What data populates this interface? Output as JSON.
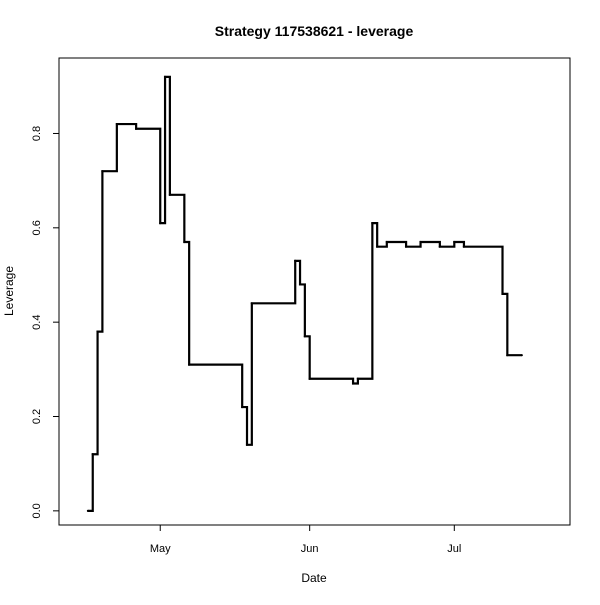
{
  "chart_data": {
    "type": "line",
    "step": true,
    "title": "Strategy 117538621 - leverage",
    "xlabel": "Date",
    "ylabel": "Leverage",
    "x_range": [
      "2015-04-10",
      "2015-07-25"
    ],
    "ylim": [
      -0.03,
      0.96
    ],
    "x_ticks": [
      {
        "date": "2015-05-01",
        "label": "May"
      },
      {
        "date": "2015-06-01",
        "label": "Jun"
      },
      {
        "date": "2015-07-01",
        "label": "Jul"
      }
    ],
    "y_ticks": [
      {
        "value": 0.0,
        "label": "0.0"
      },
      {
        "value": 0.2,
        "label": "0.2"
      },
      {
        "value": 0.4,
        "label": "0.4"
      },
      {
        "value": 0.6,
        "label": "0.6"
      },
      {
        "value": 0.8,
        "label": "0.8"
      }
    ],
    "grid": false,
    "line_color": "#000000",
    "series": [
      {
        "points": [
          {
            "x": "2015-04-16",
            "y": 0.0
          },
          {
            "x": "2015-04-17",
            "y": 0.12
          },
          {
            "x": "2015-04-18",
            "y": 0.38
          },
          {
            "x": "2015-04-19",
            "y": 0.72
          },
          {
            "x": "2015-04-22",
            "y": 0.82
          },
          {
            "x": "2015-04-26",
            "y": 0.81
          },
          {
            "x": "2015-05-01",
            "y": 0.61
          },
          {
            "x": "2015-05-02",
            "y": 0.92
          },
          {
            "x": "2015-05-03",
            "y": 0.67
          },
          {
            "x": "2015-05-06",
            "y": 0.57
          },
          {
            "x": "2015-05-07",
            "y": 0.31
          },
          {
            "x": "2015-05-18",
            "y": 0.22
          },
          {
            "x": "2015-05-19",
            "y": 0.14
          },
          {
            "x": "2015-05-20",
            "y": 0.44
          },
          {
            "x": "2015-05-29",
            "y": 0.53
          },
          {
            "x": "2015-05-30",
            "y": 0.48
          },
          {
            "x": "2015-05-31",
            "y": 0.37
          },
          {
            "x": "2015-06-01",
            "y": 0.28
          },
          {
            "x": "2015-06-10",
            "y": 0.27
          },
          {
            "x": "2015-06-11",
            "y": 0.28
          },
          {
            "x": "2015-06-14",
            "y": 0.61
          },
          {
            "x": "2015-06-15",
            "y": 0.56
          },
          {
            "x": "2015-06-17",
            "y": 0.57
          },
          {
            "x": "2015-06-21",
            "y": 0.56
          },
          {
            "x": "2015-06-24",
            "y": 0.57
          },
          {
            "x": "2015-06-28",
            "y": 0.56
          },
          {
            "x": "2015-07-01",
            "y": 0.57
          },
          {
            "x": "2015-07-03",
            "y": 0.56
          },
          {
            "x": "2015-07-11",
            "y": 0.46
          },
          {
            "x": "2015-07-12",
            "y": 0.33
          },
          {
            "x": "2015-07-15",
            "y": 0.33
          }
        ]
      }
    ]
  }
}
